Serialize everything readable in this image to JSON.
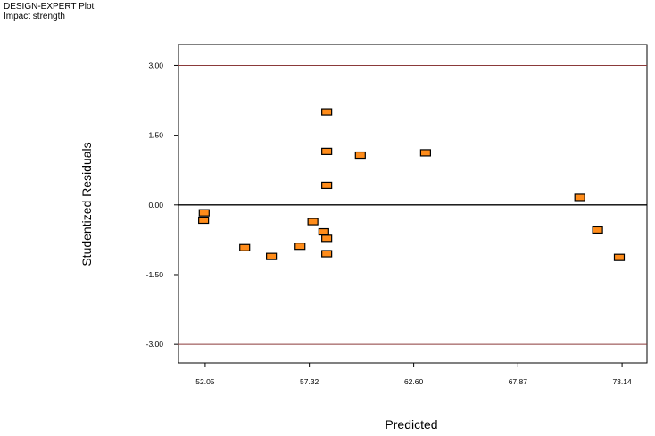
{
  "header": {
    "title": "DESIGN-EXPERT Plot",
    "subtitle": "Impact strength"
  },
  "chart_data": {
    "type": "scatter",
    "title": "",
    "xlabel": "Predicted",
    "ylabel": "Studentized Residuals",
    "xlim": [
      50.7,
      74.4
    ],
    "ylim": [
      -3.4,
      3.45
    ],
    "x_ticks": [
      52.05,
      57.32,
      62.6,
      67.87,
      73.14
    ],
    "x_tick_labels": [
      "52.05",
      "57.32",
      "62.60",
      "67.87",
      "73.14"
    ],
    "y_ticks": [
      3.0,
      1.5,
      0.0,
      -1.5,
      -3.0
    ],
    "y_tick_labels": [
      "3.00",
      "1.50",
      "0.00",
      "-1.50",
      "-3.00"
    ],
    "reference_lines": [
      {
        "y": 3.0,
        "color": "#8b3a3a"
      },
      {
        "y": 0.0,
        "color": "#000000"
      },
      {
        "y": -3.0,
        "color": "#8b3a3a"
      }
    ],
    "marker_color": "#ff8c1a",
    "marker_edge": "#000000",
    "grid": false,
    "points": [
      {
        "x": 52.0,
        "y": -0.17
      },
      {
        "x": 51.97,
        "y": -0.33
      },
      {
        "x": 54.05,
        "y": -0.92
      },
      {
        "x": 55.4,
        "y": -1.11
      },
      {
        "x": 56.85,
        "y": -0.89
      },
      {
        "x": 57.5,
        "y": -0.36
      },
      {
        "x": 58.05,
        "y": -0.58
      },
      {
        "x": 58.2,
        "y": -0.72
      },
      {
        "x": 58.2,
        "y": -1.05
      },
      {
        "x": 58.2,
        "y": 0.42
      },
      {
        "x": 58.2,
        "y": 1.15
      },
      {
        "x": 58.2,
        "y": 2.0
      },
      {
        "x": 59.9,
        "y": 1.07
      },
      {
        "x": 63.2,
        "y": 1.12
      },
      {
        "x": 71.0,
        "y": 0.16
      },
      {
        "x": 71.9,
        "y": -0.54
      },
      {
        "x": 73.0,
        "y": -1.13
      }
    ]
  }
}
